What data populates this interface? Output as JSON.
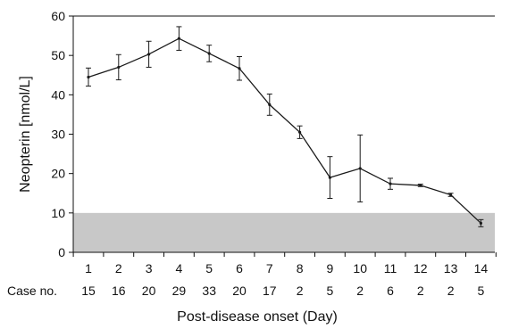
{
  "chart_data": {
    "type": "line",
    "xlabel": "Post-disease onset (Day)",
    "ylabel": "Neopterin [nmol/L]",
    "ylim": [
      0,
      60
    ],
    "y_ticks": [
      0,
      10,
      20,
      30,
      40,
      50,
      60
    ],
    "x": [
      1,
      2,
      3,
      4,
      5,
      6,
      7,
      8,
      9,
      10,
      11,
      12,
      13,
      14
    ],
    "x_tick_labels": [
      "1",
      "2",
      "3",
      "4",
      "5",
      "6",
      "7",
      "8",
      "9",
      "10",
      "11",
      "12",
      "13",
      "14"
    ],
    "case_row_label": "Case no.",
    "case_numbers": [
      "15",
      "16",
      "20",
      "29",
      "33",
      "20",
      "17",
      "2",
      "5",
      "2",
      "6",
      "2",
      "2",
      "5"
    ],
    "series": [
      {
        "values": [
          44.5,
          47.0,
          50.3,
          54.3,
          50.5,
          46.7,
          37.5,
          30.5,
          19.0,
          21.3,
          17.4,
          17.0,
          14.6,
          7.4
        ],
        "error": [
          2.3,
          3.2,
          3.3,
          3.0,
          2.1,
          3.0,
          2.7,
          1.6,
          5.3,
          8.5,
          1.4,
          0.3,
          0.4,
          0.9
        ]
      }
    ],
    "reference_band": {
      "y0": 0,
      "y1": 10,
      "color": "#c8c8c8"
    },
    "line_color": "#1a1a1a",
    "grid": false
  }
}
